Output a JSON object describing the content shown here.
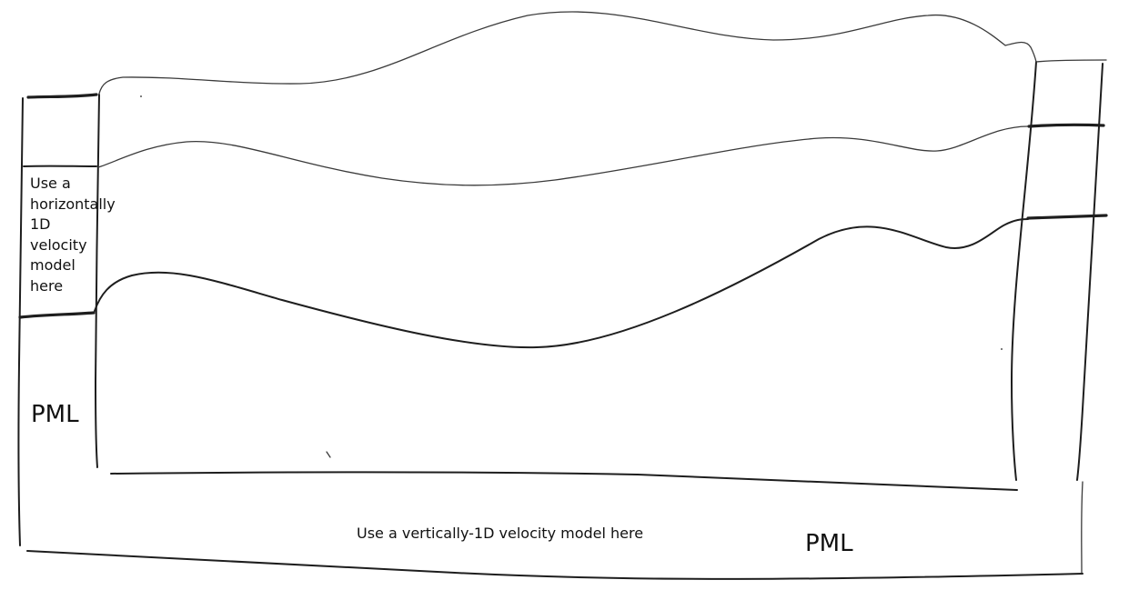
{
  "diagram": {
    "left_region_text": "Use a\nhorizontally\n1D\nvelocity\nmodel\nhere",
    "left_pml_text": "PML",
    "bottom_region_text": "Use a vertically-1D velocity model here",
    "bottom_pml_text": "PML",
    "ink_color": "#1e1e1e",
    "paper_color": "#ffffff"
  }
}
